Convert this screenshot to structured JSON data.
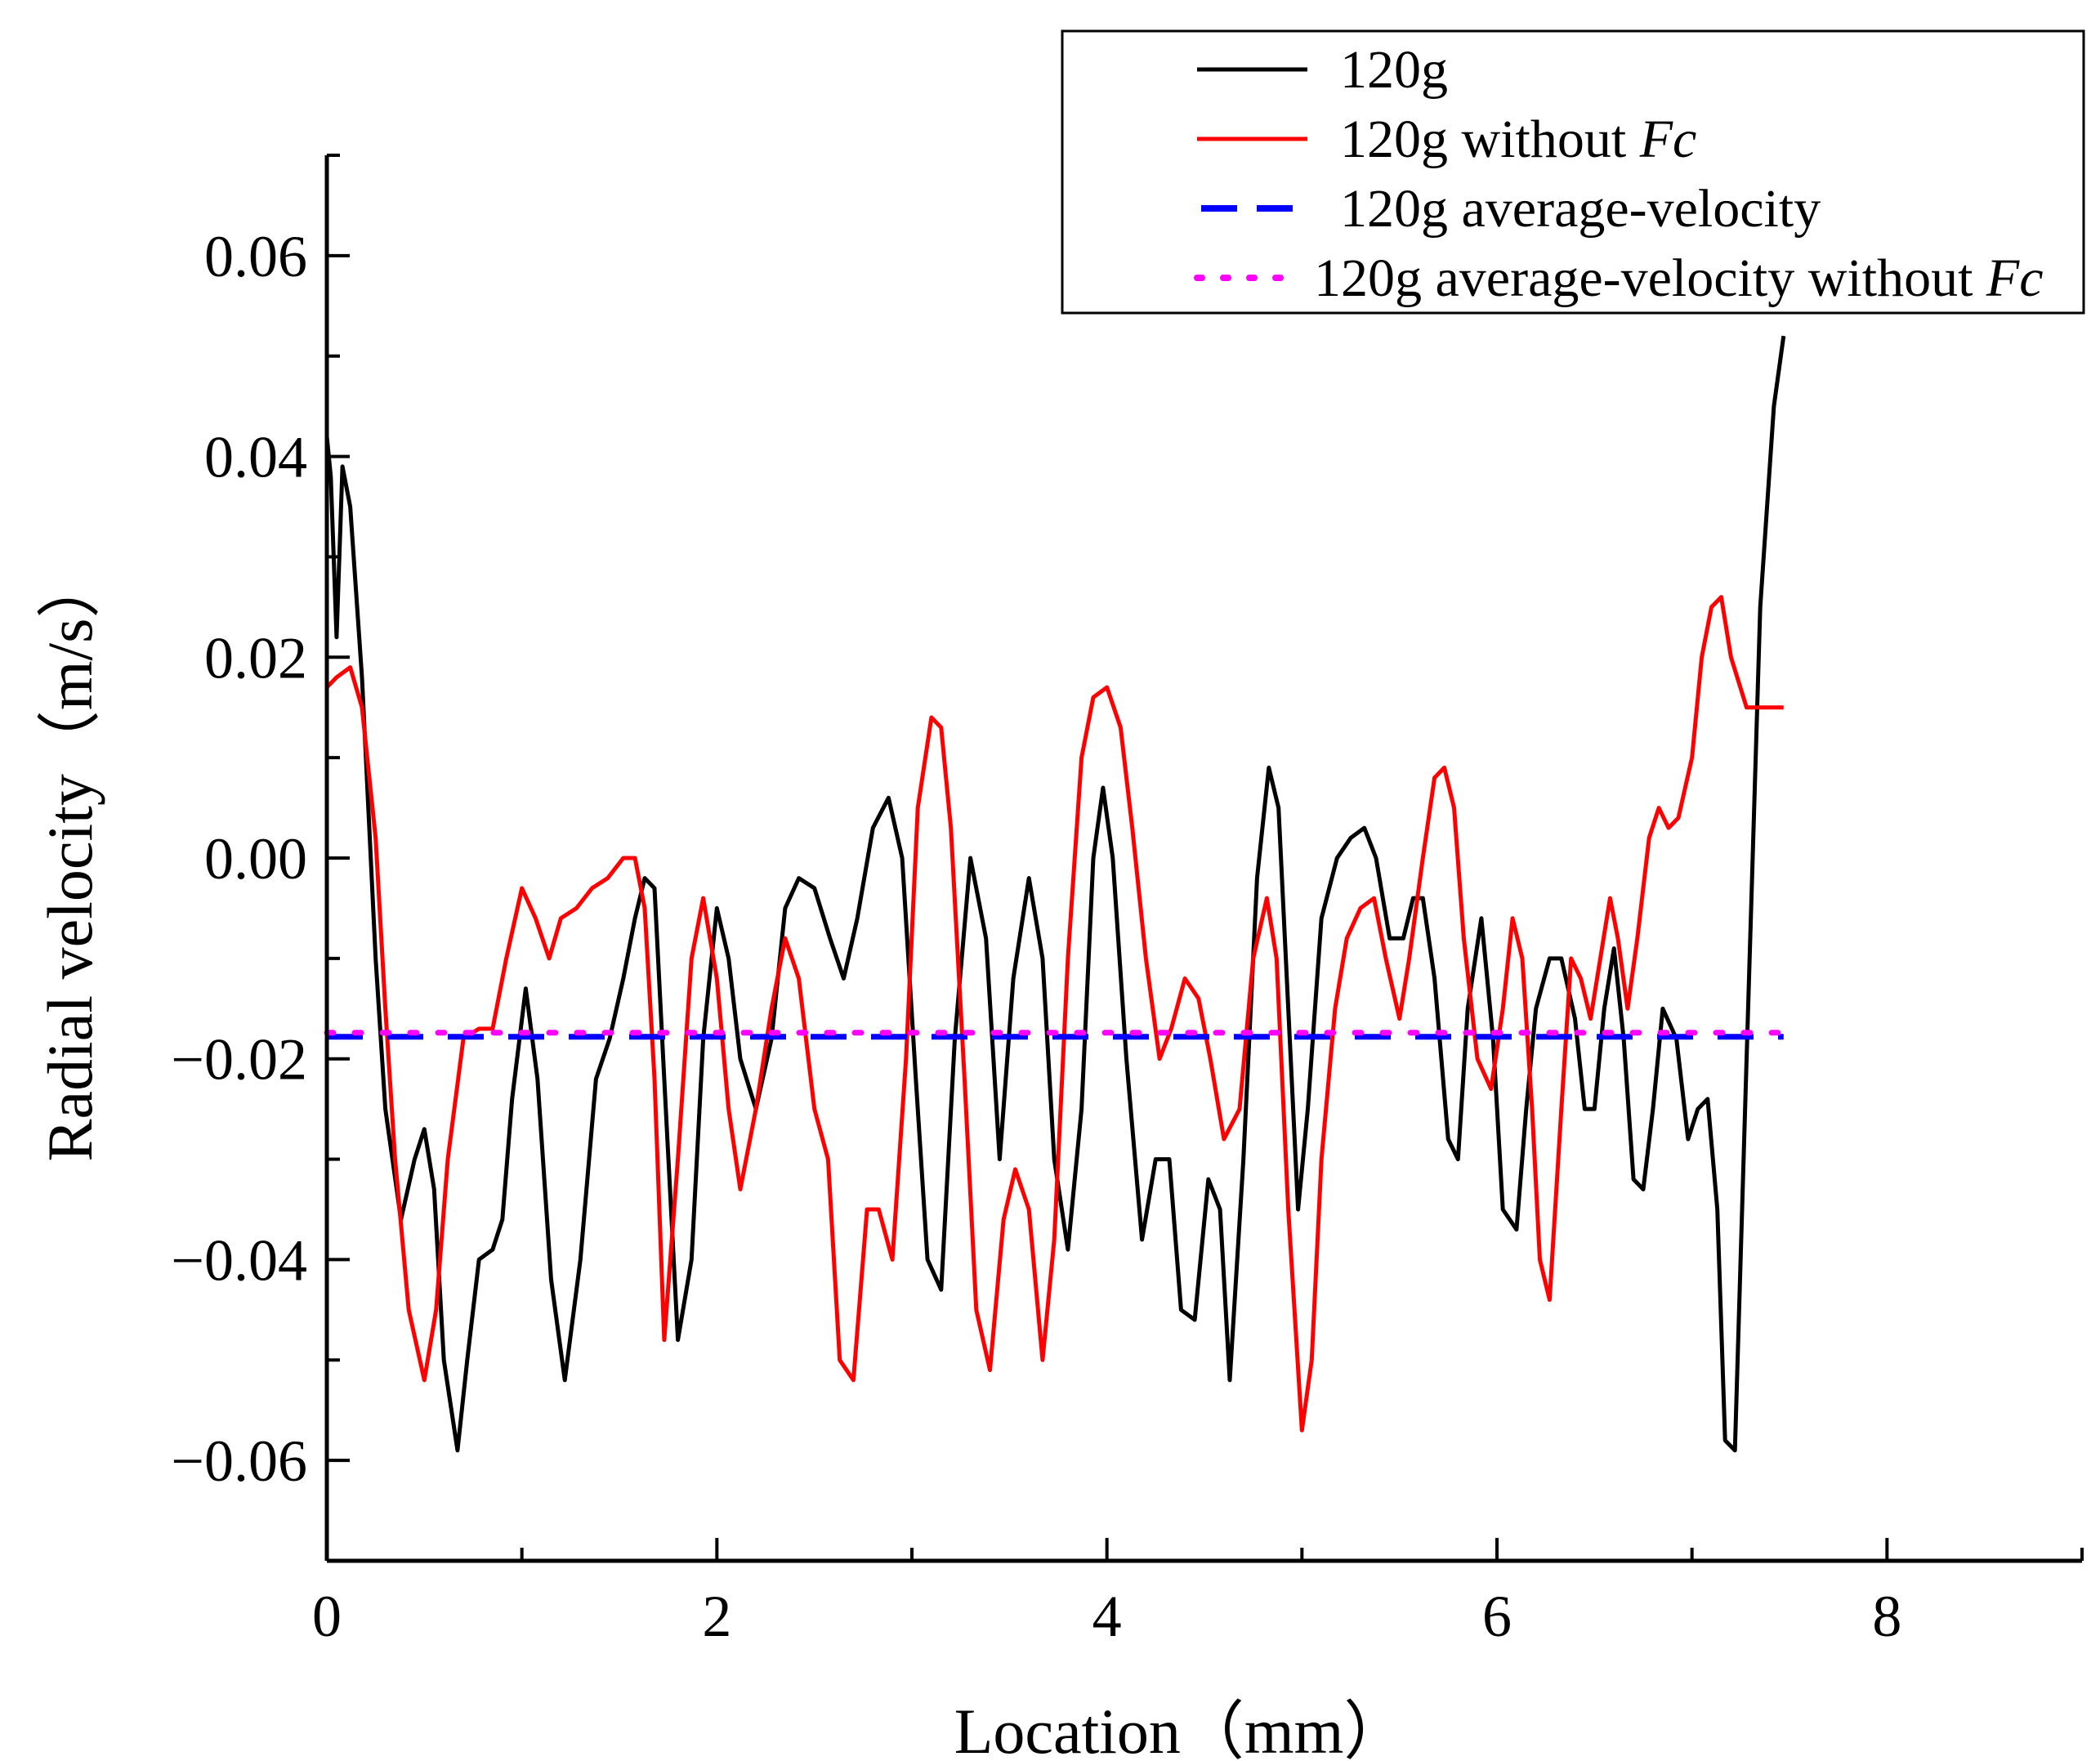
{
  "chart_data": {
    "type": "line",
    "xlabel": "Location（mm）",
    "ylabel": "Radial velocity（m/s）",
    "xlim": [
      0,
      9
    ],
    "ylim": [
      -0.07,
      0.07
    ],
    "xticks": [
      0,
      2,
      4,
      6,
      8
    ],
    "xtick_labels": [
      "0",
      "2",
      "4",
      "6",
      "8"
    ],
    "yticks": [
      -0.06,
      -0.04,
      -0.02,
      0.0,
      0.02,
      0.04,
      0.06
    ],
    "ytick_labels": [
      "−0.06",
      "−0.04",
      "−0.02",
      "0.00",
      "0.02",
      "0.04",
      "0.06"
    ],
    "legend_position": "top-right",
    "series": [
      {
        "name": "120g",
        "legend_label": "120g",
        "color": "#000000",
        "style": "solid",
        "x": [
          0,
          0.02,
          0.05,
          0.08,
          0.12,
          0.18,
          0.25,
          0.3,
          0.38,
          0.45,
          0.5,
          0.55,
          0.6,
          0.67,
          0.72,
          0.78,
          0.85,
          0.9,
          0.95,
          1.02,
          1.08,
          1.15,
          1.22,
          1.3,
          1.38,
          1.45,
          1.52,
          1.58,
          1.63,
          1.68,
          1.73,
          1.8,
          1.87,
          1.93,
          2.0,
          2.06,
          2.12,
          2.2,
          2.28,
          2.35,
          2.42,
          2.5,
          2.58,
          2.65,
          2.72,
          2.8,
          2.88,
          2.95,
          3.02,
          3.08,
          3.15,
          3.22,
          3.3,
          3.38,
          3.45,
          3.52,
          3.6,
          3.67,
          3.73,
          3.8,
          3.87,
          3.93,
          3.98,
          4.03,
          4.1,
          4.18,
          4.25,
          4.32,
          4.38,
          4.45,
          4.52,
          4.58,
          4.63,
          4.7,
          4.77,
          4.83,
          4.88,
          4.93,
          4.98,
          5.03,
          5.1,
          5.18,
          5.25,
          5.32,
          5.38,
          5.45,
          5.52,
          5.57,
          5.62,
          5.68,
          5.75,
          5.8,
          5.85,
          5.92,
          5.98,
          6.03,
          6.1,
          6.15,
          6.2,
          6.27,
          6.33,
          6.4,
          6.45,
          6.5,
          6.55,
          6.6,
          6.65,
          6.7,
          6.75,
          6.8,
          6.85,
          6.92,
          6.98,
          7.03,
          7.08,
          7.13,
          7.17,
          7.22,
          7.28,
          7.35,
          7.42,
          7.47
        ],
        "y": [
          0.042,
          0.038,
          0.022,
          0.039,
          0.035,
          0.018,
          -0.01,
          -0.025,
          -0.036,
          -0.03,
          -0.027,
          -0.033,
          -0.05,
          -0.059,
          -0.05,
          -0.04,
          -0.039,
          -0.036,
          -0.024,
          -0.013,
          -0.022,
          -0.042,
          -0.052,
          -0.04,
          -0.022,
          -0.018,
          -0.012,
          -0.006,
          -0.002,
          -0.003,
          -0.022,
          -0.048,
          -0.04,
          -0.018,
          -0.005,
          -0.01,
          -0.02,
          -0.025,
          -0.018,
          -0.005,
          -0.002,
          -0.003,
          -0.008,
          -0.012,
          -0.006,
          0.003,
          0.006,
          0.0,
          -0.022,
          -0.04,
          -0.043,
          -0.018,
          0.0,
          -0.008,
          -0.03,
          -0.012,
          -0.002,
          -0.01,
          -0.03,
          -0.039,
          -0.025,
          0.0,
          0.007,
          0.0,
          -0.02,
          -0.038,
          -0.03,
          -0.03,
          -0.045,
          -0.046,
          -0.032,
          -0.035,
          -0.052,
          -0.03,
          -0.002,
          0.009,
          0.005,
          -0.015,
          -0.035,
          -0.025,
          -0.006,
          0.0,
          0.002,
          0.003,
          0.0,
          -0.008,
          -0.008,
          -0.004,
          -0.004,
          -0.012,
          -0.028,
          -0.03,
          -0.015,
          -0.006,
          -0.018,
          -0.035,
          -0.037,
          -0.025,
          -0.015,
          -0.01,
          -0.01,
          -0.016,
          -0.025,
          -0.025,
          -0.015,
          -0.009,
          -0.018,
          -0.032,
          -0.033,
          -0.025,
          -0.015,
          -0.018,
          -0.028,
          -0.025,
          -0.024,
          -0.035,
          -0.058,
          -0.059,
          -0.02,
          0.025,
          0.045,
          0.052
        ]
      },
      {
        "name": "120g without Fc",
        "legend_label": "120g without ",
        "legend_italic": "Fc",
        "color": "#ff0000",
        "style": "solid",
        "x": [
          0,
          0.05,
          0.12,
          0.18,
          0.25,
          0.3,
          0.35,
          0.42,
          0.5,
          0.56,
          0.62,
          0.7,
          0.78,
          0.85,
          0.92,
          1.0,
          1.07,
          1.14,
          1.2,
          1.28,
          1.36,
          1.44,
          1.52,
          1.58,
          1.63,
          1.68,
          1.73,
          1.8,
          1.87,
          1.93,
          2.0,
          2.06,
          2.12,
          2.2,
          2.28,
          2.35,
          2.42,
          2.5,
          2.57,
          2.63,
          2.7,
          2.77,
          2.83,
          2.9,
          2.97,
          3.03,
          3.1,
          3.15,
          3.2,
          3.27,
          3.33,
          3.4,
          3.47,
          3.53,
          3.6,
          3.67,
          3.73,
          3.8,
          3.87,
          3.93,
          4.0,
          4.07,
          4.13,
          4.2,
          4.27,
          4.33,
          4.4,
          4.47,
          4.53,
          4.6,
          4.68,
          4.75,
          4.82,
          4.87,
          4.93,
          5.0,
          5.05,
          5.1,
          5.17,
          5.23,
          5.3,
          5.37,
          5.43,
          5.5,
          5.55,
          5.62,
          5.68,
          5.73,
          5.78,
          5.83,
          5.9,
          5.97,
          6.03,
          6.08,
          6.13,
          6.18,
          6.22,
          6.27,
          6.33,
          6.38,
          6.43,
          6.48,
          6.53,
          6.58,
          6.62,
          6.67,
          6.72,
          6.78,
          6.83,
          6.88,
          6.93,
          7.0,
          7.05,
          7.1,
          7.15,
          7.2,
          7.28,
          7.35,
          7.42,
          7.47
        ],
        "y": [
          0.017,
          0.018,
          0.019,
          0.015,
          0.002,
          -0.015,
          -0.03,
          -0.045,
          -0.052,
          -0.045,
          -0.03,
          -0.018,
          -0.017,
          -0.017,
          -0.01,
          -0.003,
          -0.006,
          -0.01,
          -0.006,
          -0.005,
          -0.003,
          -0.002,
          0.0,
          0.0,
          -0.005,
          -0.022,
          -0.048,
          -0.03,
          -0.01,
          -0.004,
          -0.012,
          -0.025,
          -0.033,
          -0.025,
          -0.015,
          -0.008,
          -0.012,
          -0.025,
          -0.03,
          -0.05,
          -0.052,
          -0.035,
          -0.035,
          -0.04,
          -0.02,
          0.005,
          0.014,
          0.013,
          0.003,
          -0.022,
          -0.045,
          -0.051,
          -0.036,
          -0.031,
          -0.035,
          -0.05,
          -0.038,
          -0.01,
          0.01,
          0.016,
          0.017,
          0.013,
          0.003,
          -0.01,
          -0.02,
          -0.017,
          -0.012,
          -0.014,
          -0.02,
          -0.028,
          -0.025,
          -0.01,
          -0.004,
          -0.01,
          -0.035,
          -0.057,
          -0.05,
          -0.03,
          -0.015,
          -0.008,
          -0.005,
          -0.004,
          -0.01,
          -0.016,
          -0.01,
          0.0,
          0.008,
          0.009,
          0.005,
          -0.008,
          -0.02,
          -0.023,
          -0.015,
          -0.006,
          -0.01,
          -0.025,
          -0.04,
          -0.044,
          -0.025,
          -0.01,
          -0.012,
          -0.016,
          -0.01,
          -0.004,
          -0.008,
          -0.015,
          -0.008,
          0.002,
          0.005,
          0.003,
          0.004,
          0.01,
          0.02,
          0.025,
          0.026,
          0.02,
          0.015,
          0.015,
          0.015,
          0.015
        ]
      },
      {
        "name": "120g  average-velocity",
        "legend_label": "120g  average-velocity",
        "color": "#0000ff",
        "style": "dashed",
        "x": [
          0,
          7.47
        ],
        "y": [
          -0.0178,
          -0.0178
        ]
      },
      {
        "name": "120g  average-velocity without Fc",
        "legend_label": "120g  average-velocity without ",
        "legend_italic": "Fc",
        "color": "#ff00ff",
        "style": "dotted",
        "x": [
          0,
          7.47
        ],
        "y": [
          -0.0174,
          -0.0174
        ]
      }
    ]
  }
}
